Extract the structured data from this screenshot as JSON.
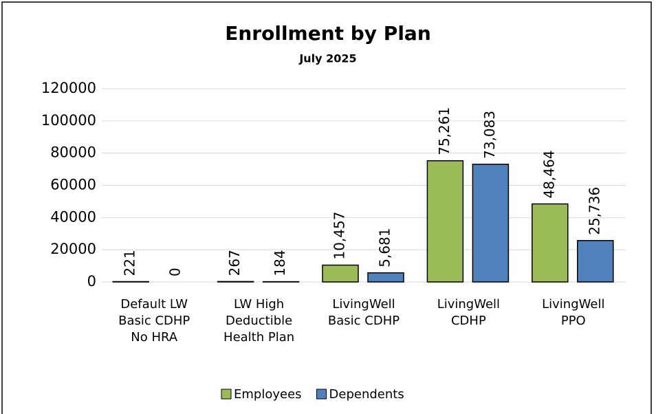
{
  "chart_data": {
    "type": "bar",
    "title": "Enrollment by Plan",
    "subtitle": "July 2025",
    "categories": [
      [
        "Default LW",
        "Basic CDHP",
        "No HRA"
      ],
      [
        "LW High",
        "Deductible",
        "Health Plan"
      ],
      [
        "LivingWell",
        "Basic CDHP"
      ],
      [
        "LivingWell",
        "CDHP"
      ],
      [
        "LivingWell",
        "PPO"
      ]
    ],
    "series": [
      {
        "name": "Employees",
        "color": "#9bbb59",
        "values": [
          221,
          267,
          10457,
          75261,
          48464
        ],
        "value_labels": [
          "221",
          "267",
          "10,457",
          "75,261",
          "48,464"
        ]
      },
      {
        "name": "Dependents",
        "color": "#4f81bd",
        "values": [
          0,
          184,
          5681,
          73083,
          25736
        ],
        "value_labels": [
          "0",
          "184",
          "5,681",
          "73,083",
          "25,736"
        ]
      }
    ],
    "ylim": [
      0,
      120000
    ],
    "yticks": [
      0,
      20000,
      40000,
      60000,
      80000,
      100000,
      120000
    ],
    "grid": true,
    "legend": "bottom"
  }
}
